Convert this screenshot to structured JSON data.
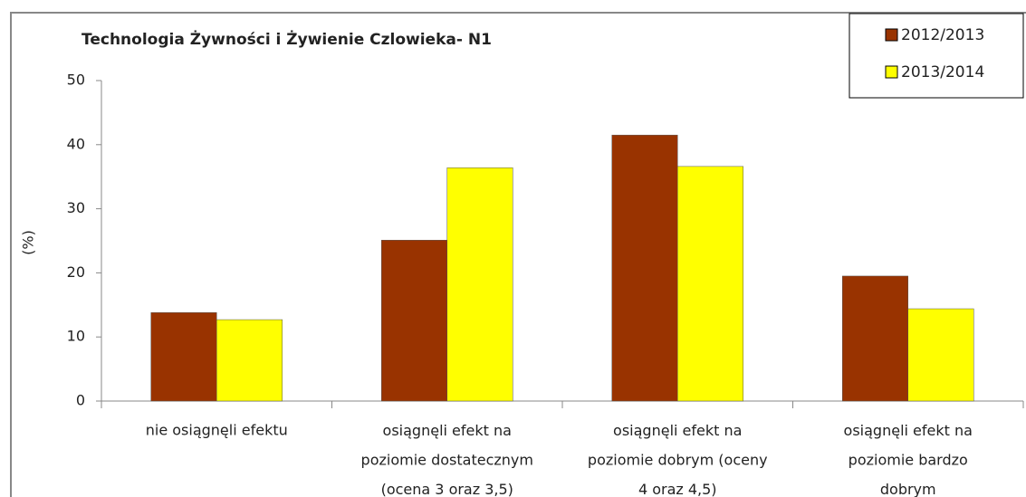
{
  "chart_data": {
    "type": "bar",
    "title": "Technologia Żywności i Żywienie Czlowieka- N1",
    "y_label": "(%)",
    "categories": [
      "nie osiągnęli efektu",
      "osiągnęli efekt na\npoziomie dostatecznym\n(ocena 3 oraz 3,5)",
      "osiągnęli efekt na\npoziomie dobrym (oceny\n4 oraz 4,5)",
      "osiągnęli efekt na\npoziomie bardzo\ndobrym"
    ],
    "series": [
      {
        "name": "2012/2013",
        "color": "#993300",
        "values": [
          13.8,
          25.1,
          41.5,
          19.5
        ]
      },
      {
        "name": "2013/2014",
        "color": "#ffff00",
        "values": [
          12.7,
          36.4,
          36.6,
          14.4
        ]
      }
    ],
    "ylim": [
      0,
      50
    ],
    "yticks": [
      0,
      10,
      20,
      30,
      40,
      50
    ],
    "legend": "top-right"
  }
}
